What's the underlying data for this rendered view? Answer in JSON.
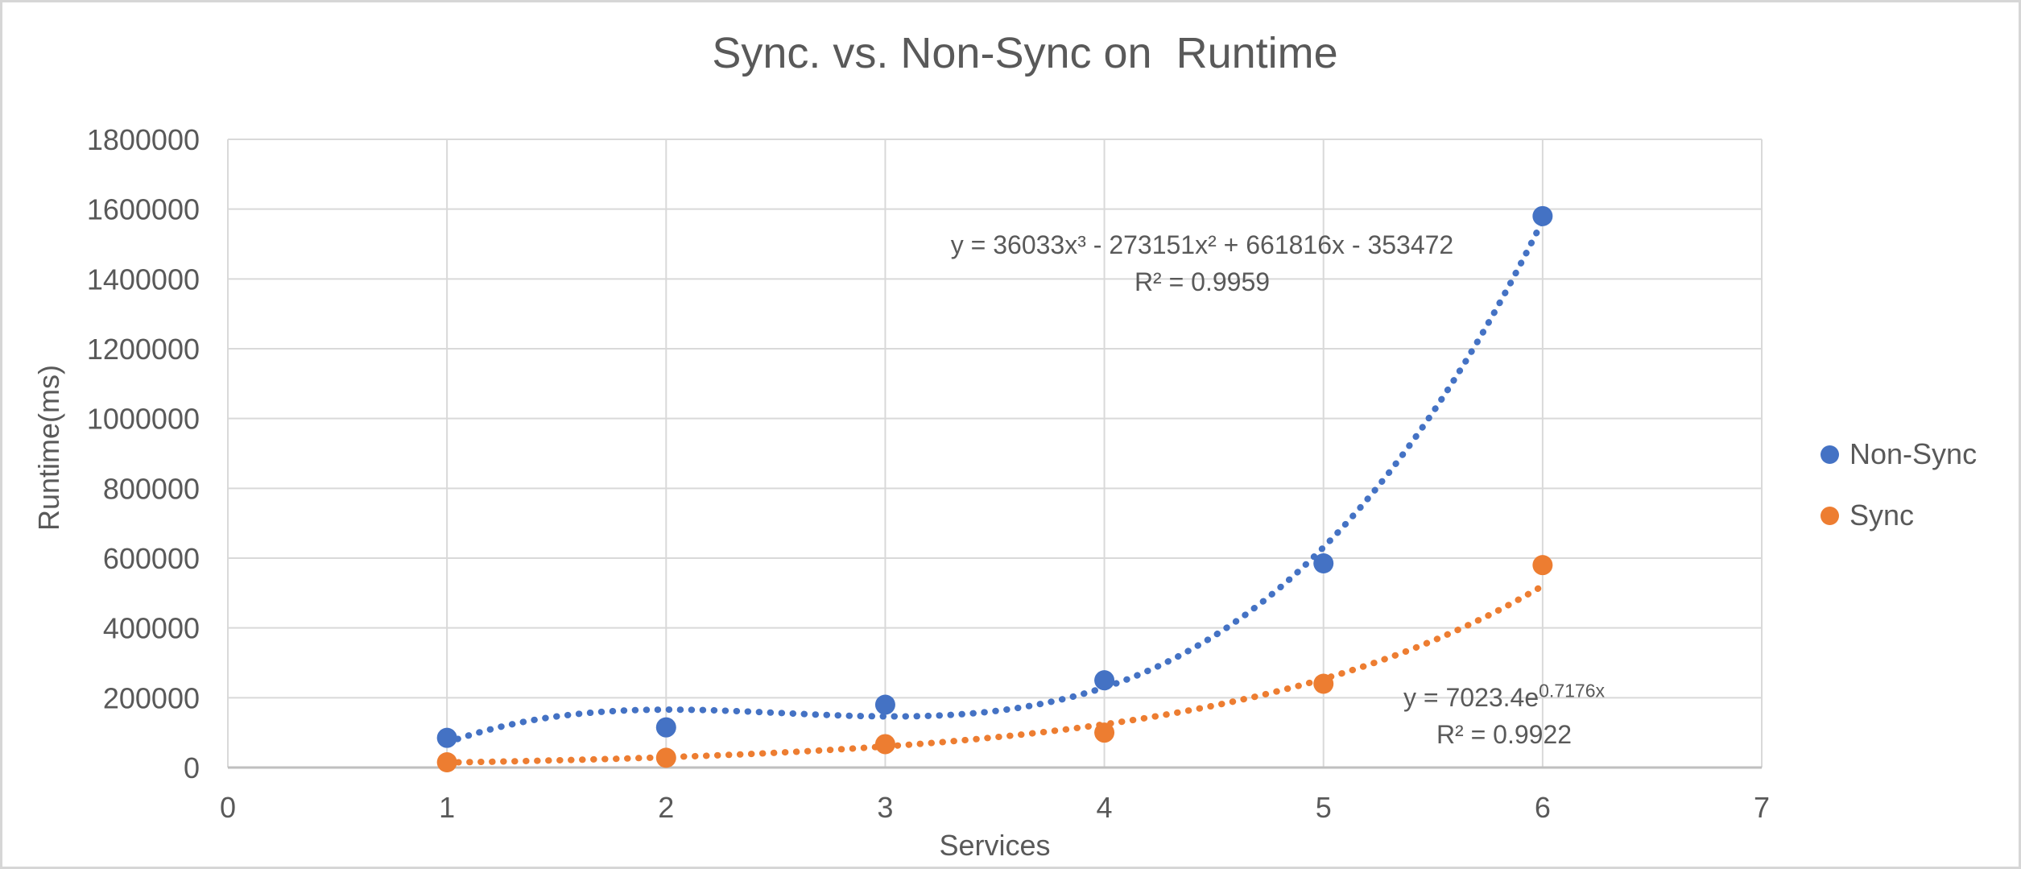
{
  "title": "Sync. vs. Non-Sync on  Runtime",
  "chart_data": {
    "type": "scatter",
    "title": "Sync. vs. Non-Sync on  Runtime",
    "xlabel": "Services",
    "ylabel": "Runtime(ms)",
    "xlim": [
      0,
      7
    ],
    "ylim": [
      0,
      1800000
    ],
    "x_ticks": [
      0,
      1,
      2,
      3,
      4,
      5,
      6,
      7
    ],
    "y_ticks": [
      0,
      200000,
      400000,
      600000,
      800000,
      1000000,
      1200000,
      1400000,
      1600000,
      1800000
    ],
    "grid": true,
    "legend_position": "right",
    "series": [
      {
        "name": "Non-Sync",
        "color": "#4472C4",
        "marker": "circle",
        "x": [
          1,
          2,
          3,
          4,
          5,
          6
        ],
        "y": [
          85000,
          115000,
          180000,
          250000,
          585000,
          1580000
        ],
        "trendline": {
          "type": "polynomial",
          "degree": 3,
          "coefficients": [
            36033,
            -273151,
            661816,
            -353472
          ],
          "range": [
            1,
            6
          ],
          "style": "dotted",
          "equation": "y = 36033x³ - 273151x² + 661816x - 353472",
          "r_squared_label": "R² = 0.9959"
        }
      },
      {
        "name": "Sync",
        "color": "#ED7D31",
        "marker": "circle",
        "x": [
          1,
          2,
          3,
          4,
          5,
          6
        ],
        "y": [
          15000,
          28000,
          67000,
          100000,
          240000,
          580000
        ],
        "trendline": {
          "type": "exponential",
          "a": 7023.4,
          "b": 0.7176,
          "range": [
            1,
            6
          ],
          "style": "dotted",
          "equation_base": "y = 7023.4e",
          "equation_exponent": "0.7176x",
          "r_squared_label": "R² = 0.9922"
        }
      }
    ]
  },
  "legend": {
    "items": [
      {
        "label": "Non-Sync",
        "color": "#4472C4"
      },
      {
        "label": "Sync",
        "color": "#ED7D31"
      }
    ]
  },
  "colors": {
    "text": "#595959",
    "gridline": "#D9D9D9",
    "axis_line": "#BFBFBF",
    "frame_border": "#D6D6D6",
    "background": "#FFFFFF"
  }
}
